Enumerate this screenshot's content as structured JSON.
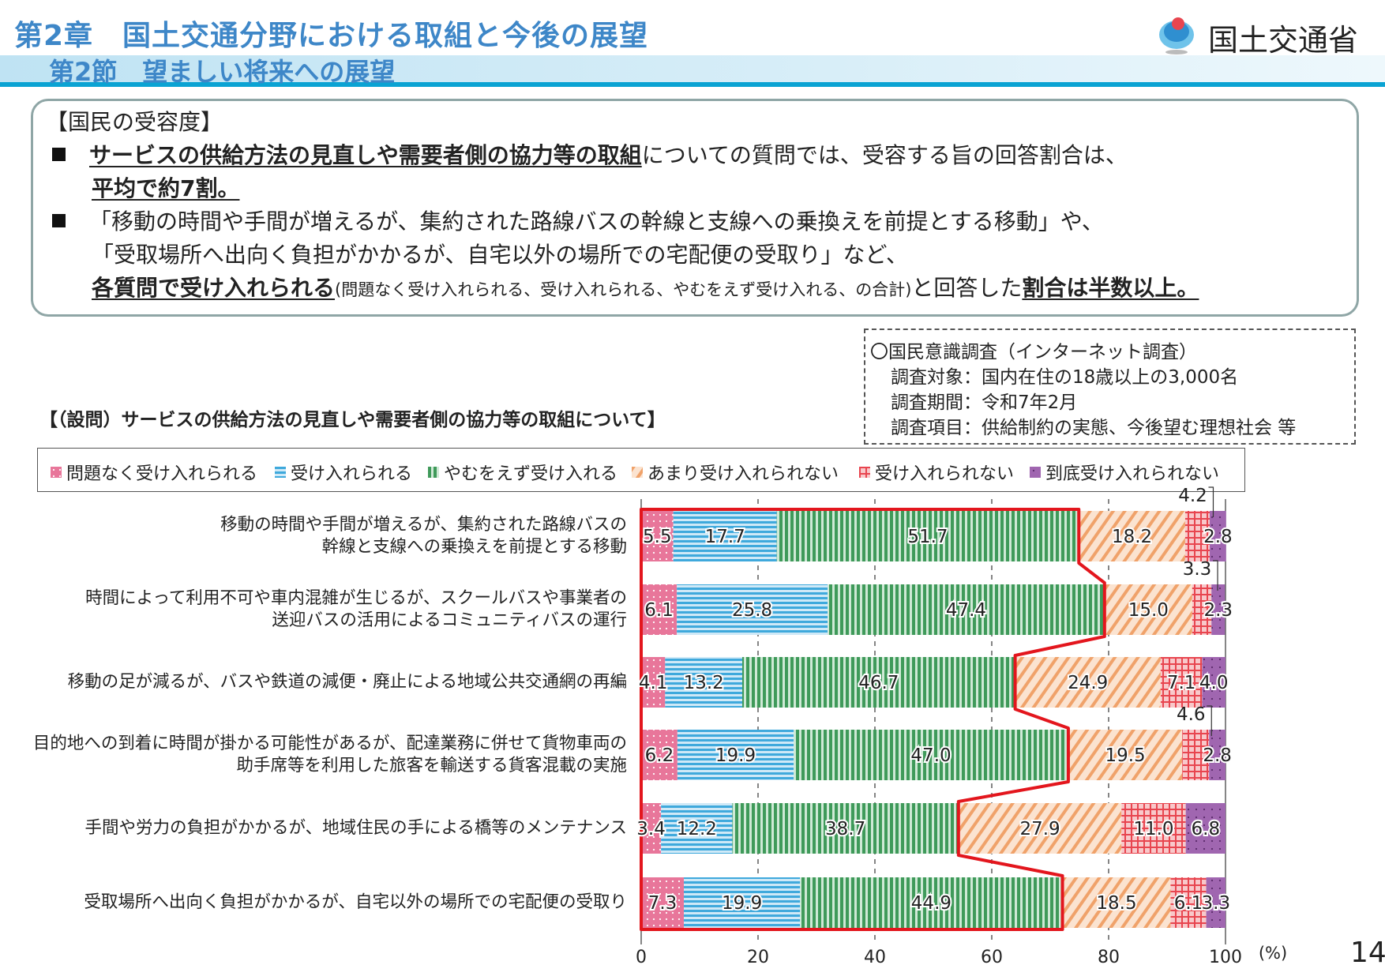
{
  "header": {
    "title": "第2章　国土交通分野における取組と今後の展望",
    "subtitle": "第2節　望ましい将来への展望",
    "logo_text": "国土交通省"
  },
  "summary": {
    "heading": "【国民の受容度】",
    "bullet1_emph": "サービスの供給方法の見直しや需要者側の協力等の取組",
    "bullet1_rest": "についての質問では、受容する旨の回答割合は、",
    "bullet1_line2": "平均で約7割。",
    "bullet2_line1": "「移動の時間や手間が増えるが、集約された路線バスの幹線と支線への乗換えを前提とする移動」や、",
    "bullet2_line2": "「受取場所へ出向く負担がかかるが、自宅以外の場所での宅配便の受取り」など、",
    "bullet2_emph1": "各質問で受け入れられる",
    "bullet2_small": "(問題なく受け入れられる、受け入れられる、やむをえず受け入れる、の合計)",
    "bullet2_mid": "と回答した",
    "bullet2_emph2": "割合は半数以上。"
  },
  "survey": {
    "title": "〇国民意識調査（インターネット調査）",
    "target": "調査対象：国内在住の18歳以上の3,000名",
    "period": "調査期間：令和7年2月",
    "items": "調査項目：供給制約の実態、今後望む理想社会 等"
  },
  "page_number": "14",
  "chart_data": {
    "type": "bar",
    "stacked": true,
    "orientation": "horizontal",
    "title": "【（設問）サービスの供給方法の見直しや需要者側の協力等の取組について】",
    "xlabel": "(%)",
    "xlim": [
      0,
      100
    ],
    "xticks": [
      "0",
      "20",
      "40",
      "60",
      "80",
      "100"
    ],
    "grid": true,
    "legend": "top",
    "categories": [
      [
        "移動の時間や手間が増えるが、集約された路線バスの",
        "幹線と支線への乗換えを前提とする移動"
      ],
      [
        "時間によって利用不可や車内混雑が生じるが、スクールバスや事業者の",
        "送迎バスの活用によるコミュニティバスの運行"
      ],
      [
        "移動の足が減るが、バスや鉄道の減便・廃止による地域公共交通網の再編"
      ],
      [
        "目的地への到着に時間が掛かる可能性があるが、配達業務に併せて貨物車両の",
        "助手席等を利用した旅客を輸送する貨客混載の実施"
      ],
      [
        "手間や労力の負担がかかるが、地域住民の手による橋等のメンテナンス"
      ],
      [
        "受取場所へ出向く負担がかかるが、自宅以外の場所での宅配便の受取り"
      ]
    ],
    "series": [
      {
        "name": "問題なく受け入れられる",
        "color": "#e8769a",
        "values": [
          5.5,
          6.1,
          4.1,
          6.2,
          3.4,
          7.3
        ]
      },
      {
        "name": "受け入れられる",
        "color": "#3fa9dc",
        "values": [
          17.7,
          25.8,
          13.2,
          19.9,
          12.2,
          19.9
        ]
      },
      {
        "name": "やむをえず受け入れる",
        "color": "#3f9a5a",
        "values": [
          51.7,
          47.4,
          46.7,
          47.0,
          38.7,
          44.9
        ]
      },
      {
        "name": "あまり受け入れられない",
        "color": "#f0a26a",
        "values": [
          18.2,
          15.0,
          24.9,
          19.5,
          27.9,
          18.5
        ]
      },
      {
        "name": "受け入れられない",
        "color": "#e8454f",
        "values": [
          4.2,
          3.3,
          7.1,
          4.6,
          11.0,
          6.1
        ]
      },
      {
        "name": "到底受け入れられない",
        "color": "#a066b0",
        "values": [
          2.8,
          2.3,
          4.0,
          2.8,
          6.8,
          3.3
        ]
      }
    ],
    "highlight": "受容（上位3区分の合計）を赤枠で囲む",
    "highlight_color": "#e3161d"
  }
}
